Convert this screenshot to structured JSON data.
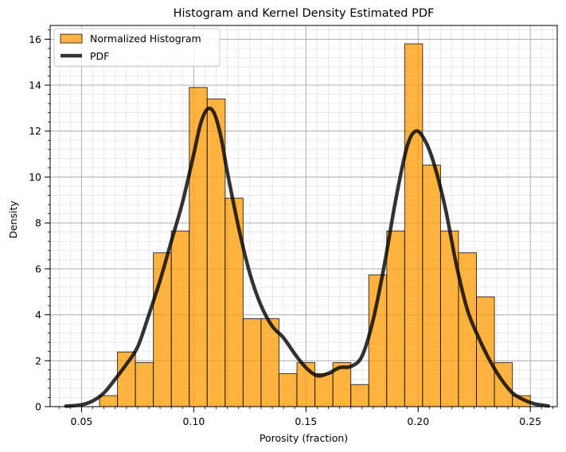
{
  "chart_data": {
    "type": "bar",
    "title": "Histogram and Kernel Density Estimated PDF",
    "xlabel": "Porosity (fraction)",
    "ylabel": "Density",
    "xlim": [
      0.036,
      0.262
    ],
    "ylim": [
      0,
      16.6
    ],
    "x_ticks": [
      0.05,
      0.1,
      0.15,
      0.2,
      0.25
    ],
    "x_tick_labels": [
      "0.05",
      "0.10",
      "0.15",
      "0.20",
      "0.25"
    ],
    "y_ticks": [
      0,
      2,
      4,
      6,
      8,
      10,
      12,
      14,
      16
    ],
    "y_tick_labels": [
      "0",
      "2",
      "4",
      "6",
      "8",
      "10",
      "12",
      "14",
      "16"
    ],
    "grid": true,
    "legend_position": "top-left",
    "colors": {
      "bars": "#ff9900",
      "bar_edge": "#000000",
      "pdf": "#000000"
    },
    "histogram": {
      "name": "Normalized Histogram",
      "bin_width": 0.008,
      "bins": [
        {
          "x0": 0.058,
          "value": 0.48
        },
        {
          "x0": 0.066,
          "value": 2.38
        },
        {
          "x0": 0.074,
          "value": 1.92
        },
        {
          "x0": 0.082,
          "value": 6.7
        },
        {
          "x0": 0.09,
          "value": 7.65
        },
        {
          "x0": 0.098,
          "value": 13.9
        },
        {
          "x0": 0.106,
          "value": 13.4
        },
        {
          "x0": 0.114,
          "value": 9.08
        },
        {
          "x0": 0.122,
          "value": 3.83
        },
        {
          "x0": 0.13,
          "value": 3.83
        },
        {
          "x0": 0.138,
          "value": 1.44
        },
        {
          "x0": 0.146,
          "value": 1.92
        },
        {
          "x0": 0.154,
          "value": 1.44
        },
        {
          "x0": 0.162,
          "value": 1.92
        },
        {
          "x0": 0.17,
          "value": 0.96
        },
        {
          "x0": 0.178,
          "value": 5.74
        },
        {
          "x0": 0.186,
          "value": 7.65
        },
        {
          "x0": 0.194,
          "value": 15.8
        },
        {
          "x0": 0.202,
          "value": 10.52
        },
        {
          "x0": 0.21,
          "value": 7.65
        },
        {
          "x0": 0.218,
          "value": 6.7
        },
        {
          "x0": 0.226,
          "value": 4.78
        },
        {
          "x0": 0.234,
          "value": 1.92
        },
        {
          "x0": 0.242,
          "value": 0.48
        }
      ]
    },
    "pdf": {
      "name": "PDF",
      "points": [
        [
          0.043,
          0.02
        ],
        [
          0.05,
          0.08
        ],
        [
          0.055,
          0.25
        ],
        [
          0.06,
          0.6
        ],
        [
          0.065,
          1.2
        ],
        [
          0.07,
          1.85
        ],
        [
          0.075,
          2.6
        ],
        [
          0.08,
          4.0
        ],
        [
          0.085,
          5.5
        ],
        [
          0.09,
          7.2
        ],
        [
          0.095,
          8.9
        ],
        [
          0.1,
          11.0
        ],
        [
          0.103,
          12.3
        ],
        [
          0.106,
          12.95
        ],
        [
          0.109,
          12.8
        ],
        [
          0.112,
          11.8
        ],
        [
          0.115,
          10.2
        ],
        [
          0.12,
          7.8
        ],
        [
          0.125,
          5.8
        ],
        [
          0.13,
          4.4
        ],
        [
          0.135,
          3.5
        ],
        [
          0.14,
          3.0
        ],
        [
          0.145,
          2.3
        ],
        [
          0.15,
          1.7
        ],
        [
          0.155,
          1.35
        ],
        [
          0.16,
          1.45
        ],
        [
          0.165,
          1.7
        ],
        [
          0.17,
          1.75
        ],
        [
          0.175,
          2.2
        ],
        [
          0.18,
          3.8
        ],
        [
          0.185,
          6.2
        ],
        [
          0.19,
          9.0
        ],
        [
          0.195,
          11.3
        ],
        [
          0.199,
          12.0
        ],
        [
          0.203,
          11.6
        ],
        [
          0.207,
          10.6
        ],
        [
          0.212,
          8.7
        ],
        [
          0.217,
          6.2
        ],
        [
          0.222,
          4.2
        ],
        [
          0.227,
          3.0
        ],
        [
          0.232,
          2.0
        ],
        [
          0.237,
          1.2
        ],
        [
          0.242,
          0.6
        ],
        [
          0.247,
          0.3
        ],
        [
          0.252,
          0.12
        ],
        [
          0.258,
          0.03
        ]
      ]
    }
  }
}
